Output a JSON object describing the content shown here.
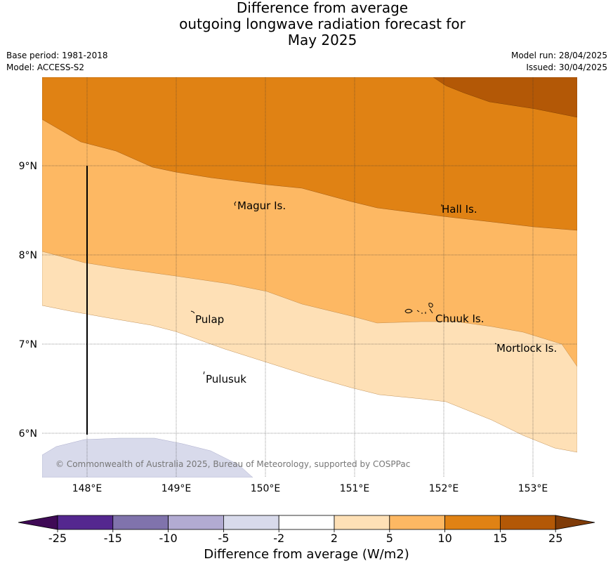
{
  "title": {
    "line1": "Difference from average",
    "line2": "outgoing longwave radiation forecast for",
    "line3": "May 2025"
  },
  "info": {
    "base_period": "Base period: 1981-2018",
    "model": "Model: ACCESS-S2",
    "model_run": "Model run: 28/04/2025",
    "issued": "Issued: 30/04/2025"
  },
  "map": {
    "lon_labels": [
      "148°E",
      "149°E",
      "150°E",
      "151°E",
      "152°E",
      "153°E"
    ],
    "lat_labels": [
      "9°N",
      "8°N",
      "7°N",
      "6°N"
    ],
    "places": [
      "Magur Is.",
      "Hall Is.",
      "Pulap",
      "Chuuk Is.",
      "Mortlock Is.",
      "Pulusuk"
    ],
    "copyright": "© Commonwealth of Australia 2025, Bureau of Meteorology, supported by COSPPac"
  },
  "legend": {
    "title": "Difference from average (W/m2)",
    "ticks": [
      "-25",
      "-15",
      "-10",
      "-5",
      "-2",
      "2",
      "5",
      "10",
      "15",
      "25"
    ],
    "colors": [
      "#3f0a56",
      "#54278f",
      "#8073ac",
      "#b2abd2",
      "#d8daeb",
      "#ffffff",
      "#fee0b6",
      "#fdb863",
      "#e08214",
      "#b35806",
      "#7f3b08"
    ]
  }
}
